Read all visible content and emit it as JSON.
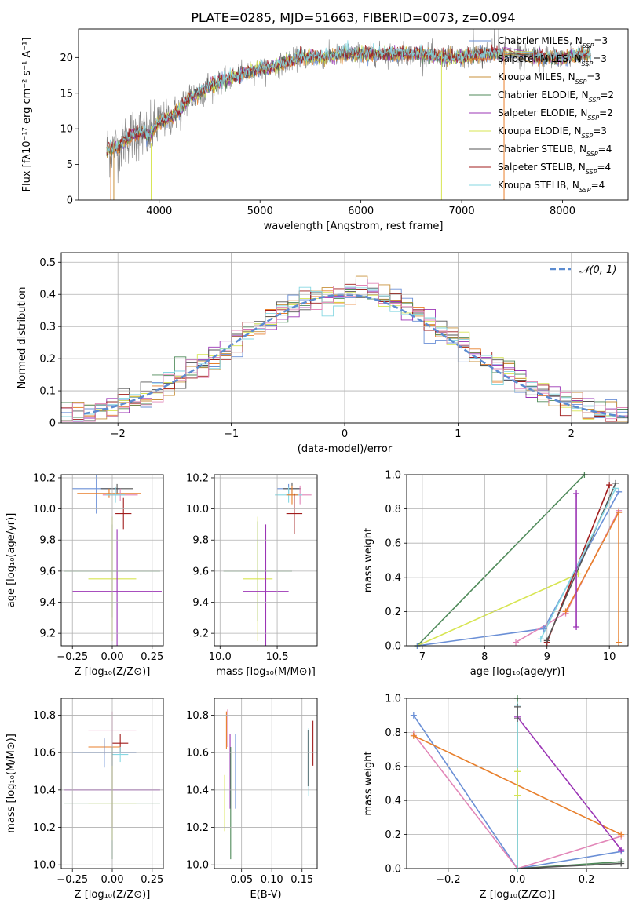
{
  "colors": {
    "Chabrier MILES": "#6a8fd6",
    "Salpeter MILES": "#e87f2b",
    "Kroupa MILES": "#c8913b",
    "Chabrier ELODIE": "#4f8a5a",
    "Salpeter ELODIE": "#9b34b5",
    "Kroupa ELODIE": "#d7e552",
    "Chabrier STELIB": "#555555",
    "Salpeter STELIB": "#a11d1d",
    "Kroupa STELIB": "#86d7e2",
    "pink": "#e286b8",
    "gray_spectrum": "#808080",
    "normal": "#5b8bd0"
  },
  "chart_data": [
    {
      "id": "spectrum",
      "type": "line",
      "title": "PLATE=0285, MJD=51663, FIBERID=0073, z=0.094",
      "xlabel": "wavelength [Angstrom, rest frame]",
      "ylabel": "Flux [fλ10⁻¹⁷ erg cm⁻² s⁻¹ A⁻¹]",
      "xlim": [
        3200,
        8650
      ],
      "ylim": [
        0,
        24
      ],
      "xticks": [
        4000,
        5000,
        6000,
        7000,
        8000
      ],
      "yticks": [
        0,
        5,
        10,
        15,
        20
      ],
      "grid": false,
      "legend": "top-right",
      "legend_entries": [
        {
          "label": "Chabrier MILES, N",
          "sub": "SSP",
          "suffix": "=3",
          "color": "Chabrier MILES"
        },
        {
          "label": "Salpeter MILES, N",
          "sub": "SSP",
          "suffix": "=3",
          "color": "Salpeter MILES"
        },
        {
          "label": "Kroupa MILES, N",
          "sub": "SSP",
          "suffix": "=3",
          "color": "Kroupa MILES"
        },
        {
          "label": "Chabrier ELODIE, N",
          "sub": "SSP",
          "suffix": "=2",
          "color": "Chabrier ELODIE"
        },
        {
          "label": "Salpeter ELODIE, N",
          "sub": "SSP",
          "suffix": "=2",
          "color": "Salpeter ELODIE"
        },
        {
          "label": "Kroupa ELODIE, N",
          "sub": "SSP",
          "suffix": "=3",
          "color": "Kroupa ELODIE"
        },
        {
          "label": "Chabrier STELIB, N",
          "sub": "SSP",
          "suffix": "=4",
          "color": "Chabrier STELIB"
        },
        {
          "label": "Salpeter STELIB, N",
          "sub": "SSP",
          "suffix": "=4",
          "color": "Salpeter STELIB"
        },
        {
          "label": "Kroupa STELIB, N",
          "sub": "SSP",
          "suffix": "=4",
          "color": "Kroupa STELIB"
        }
      ],
      "envelope": {
        "x": [
          3480,
          3600,
          3700,
          3800,
          3900,
          4000,
          4100,
          4200,
          4300,
          4400,
          4500,
          4600,
          4700,
          4800,
          4900,
          5000,
          5100,
          5200,
          5300,
          5400,
          5500,
          5600,
          5700,
          5800,
          5900,
          6000,
          6200,
          6400,
          6600,
          6800,
          7000,
          7200,
          7400,
          7600,
          7800,
          8000,
          8200,
          8280
        ],
        "y": [
          7.0,
          7.5,
          9.0,
          9.5,
          9.0,
          11.0,
          11.5,
          12.5,
          14.5,
          15.0,
          16.0,
          16.5,
          17.0,
          17.5,
          18.0,
          18.5,
          18.5,
          19.0,
          19.5,
          20.0,
          20.0,
          20.0,
          20.0,
          20.5,
          20.5,
          20.5,
          20.5,
          20.5,
          20.5,
          20.0,
          20.0,
          20.5,
          20.5,
          20.5,
          20.0,
          20.0,
          20.5,
          20.3
        ]
      }
    },
    {
      "id": "residuals",
      "type": "line",
      "xlabel": "(data-model)/error",
      "ylabel": "Normed distribution",
      "xlim": [
        -2.5,
        2.5
      ],
      "ylim": [
        0,
        0.53
      ],
      "xticks": [
        -2,
        -1,
        0,
        1,
        2
      ],
      "yticks": [
        0.0,
        0.1,
        0.2,
        0.3,
        0.4,
        0.5
      ],
      "grid": true,
      "legend": "top-right",
      "legend_entries": [
        {
          "label": "𝒩(0, 1)",
          "color": "normal"
        }
      ],
      "bin_width": 0.1
    },
    {
      "id": "age_vs_Z",
      "type": "scatter",
      "xlabel": "Z [log₁₀(Z/Z⊙)]",
      "ylabel": "age  [log₁₀(age/yr)]",
      "xlim": [
        -0.32,
        0.32
      ],
      "ylim": [
        9.12,
        10.22
      ],
      "xticks": [
        -0.25,
        0.0,
        0.25
      ],
      "yticks": [
        9.2,
        9.4,
        9.6,
        9.8,
        10.0,
        10.2
      ],
      "grid": true,
      "points": [
        {
          "x": -0.1,
          "y": 10.13,
          "xerr": 0.15,
          "yerr": 0.16,
          "color": "Chabrier MILES"
        },
        {
          "x": 0.03,
          "y": 10.13,
          "xerr": 0.1,
          "yerr": 0.03,
          "color": "Chabrier STELIB"
        },
        {
          "x": -0.02,
          "y": 10.1,
          "xerr": 0.2,
          "yerr": 0.03,
          "color": "Salpeter MILES"
        },
        {
          "x": 0.05,
          "y": 10.09,
          "xerr": 0.11,
          "yerr": 0.04,
          "color": "pink"
        },
        {
          "x": 0.02,
          "y": 10.09,
          "xerr": 0.06,
          "yerr": 0.05,
          "color": "Kroupa STELIB"
        },
        {
          "x": 0.07,
          "y": 9.97,
          "xerr": 0.05,
          "yerr": 0.1,
          "color": "Salpeter STELIB"
        },
        {
          "x": 0.0,
          "y": 9.6,
          "xerr": 0.3,
          "yerr": 0.3,
          "color": "Chabrier ELODIE"
        },
        {
          "x": 0.0,
          "y": 9.55,
          "xerr": 0.15,
          "yerr": 0.4,
          "color": "Kroupa ELODIE"
        },
        {
          "x": 0.03,
          "y": 9.47,
          "xerr": 0.28,
          "yerr": 0.4,
          "color": "Salpeter ELODIE"
        }
      ]
    },
    {
      "id": "age_vs_mass",
      "type": "scatter",
      "xlabel": "mass [log₁₀(M/M⊙)]",
      "ylabel": "",
      "xlim": [
        9.95,
        10.85
      ],
      "ylim": [
        9.12,
        10.22
      ],
      "xticks": [
        10.0,
        10.5
      ],
      "yticks": [
        9.2,
        9.4,
        9.6,
        9.8,
        10.0,
        10.2
      ],
      "grid": true,
      "points": [
        {
          "x": 10.6,
          "y": 10.13,
          "xerr": 0.1,
          "yerr": 0.03,
          "color": "Chabrier MILES"
        },
        {
          "x": 10.63,
          "y": 10.13,
          "xerr": 0.08,
          "yerr": 0.04,
          "color": "Chabrier STELIB"
        },
        {
          "x": 10.7,
          "y": 10.09,
          "xerr": 0.1,
          "yerr": 0.06,
          "color": "pink"
        },
        {
          "x": 10.6,
          "y": 10.09,
          "xerr": 0.12,
          "yerr": 0.05,
          "color": "Kroupa STELIB"
        },
        {
          "x": 10.63,
          "y": 10.09,
          "xerr": 0.05,
          "yerr": 0.06,
          "color": "Salpeter MILES"
        },
        {
          "x": 10.65,
          "y": 9.97,
          "xerr": 0.07,
          "yerr": 0.13,
          "color": "Salpeter STELIB"
        },
        {
          "x": 10.33,
          "y": 9.6,
          "xerr": 0.3,
          "yerr": 0.32,
          "color": "Chabrier ELODIE"
        },
        {
          "x": 10.33,
          "y": 9.55,
          "xerr": 0.13,
          "yerr": 0.4,
          "color": "Kroupa ELODIE"
        },
        {
          "x": 10.4,
          "y": 9.47,
          "xerr": 0.2,
          "yerr": 0.43,
          "color": "Salpeter ELODIE"
        }
      ]
    },
    {
      "id": "weight_vs_age",
      "type": "line",
      "xlabel": "age  [log₁₀(age/yr)]",
      "ylabel": "mass weight",
      "xlim": [
        6.75,
        10.3
      ],
      "ylim": [
        0,
        1
      ],
      "xticks": [
        7,
        8,
        9,
        10
      ],
      "yticks": [
        0.0,
        0.2,
        0.4,
        0.6,
        0.8,
        1.0
      ],
      "grid": true,
      "series": [
        {
          "color": "Chabrier ELODIE",
          "x": [
            6.92,
            9.6
          ],
          "y": [
            0.0,
            1.0
          ]
        },
        {
          "color": "Kroupa ELODIE",
          "x": [
            6.92,
            9.5
          ],
          "y": [
            0.0,
            0.42
          ]
        },
        {
          "color": "Chabrier MILES",
          "x": [
            6.92,
            8.95,
            10.15
          ],
          "y": [
            0.0,
            0.1,
            0.9
          ]
        },
        {
          "color": "pink",
          "x": [
            8.5,
            9.3,
            10.15
          ],
          "y": [
            0.02,
            0.19,
            0.79
          ]
        },
        {
          "color": "Salpeter MILES",
          "x": [
            9.3,
            10.15
          ],
          "y": [
            0.2,
            0.78
          ]
        },
        {
          "color": "Salpeter STELIB",
          "x": [
            9.0,
            10.0
          ],
          "y": [
            0.02,
            0.94
          ]
        },
        {
          "color": "Chabrier STELIB",
          "x": [
            9.0,
            10.1
          ],
          "y": [
            0.03,
            0.95
          ]
        },
        {
          "color": "Kroupa STELIB",
          "x": [
            8.9,
            10.1
          ],
          "y": [
            0.04,
            0.92
          ]
        }
      ],
      "vlines": [
        {
          "color": "Salpeter ELODIE",
          "x": 9.47,
          "y": [
            0.11,
            0.89
          ]
        },
        {
          "color": "Salpeter MILES",
          "x": 10.15,
          "y": [
            0.02,
            0.78
          ]
        }
      ]
    },
    {
      "id": "mass_vs_Z",
      "type": "scatter",
      "xlabel": "Z [log₁₀(Z/Z⊙)]",
      "ylabel": "mass [log₁₀(M/M⊙)]",
      "xlim": [
        -0.32,
        0.32
      ],
      "ylim": [
        9.98,
        10.89
      ],
      "xticks": [
        -0.25,
        0.0,
        0.25
      ],
      "yticks": [
        10.0,
        10.2,
        10.4,
        10.6,
        10.8
      ],
      "grid": true,
      "points": [
        {
          "x": 0.0,
          "y": 10.72,
          "xerr": 0.15,
          "yerr": 0.1,
          "color": "pink"
        },
        {
          "x": 0.05,
          "y": 10.65,
          "xerr": 0.05,
          "yerr": 0.05,
          "color": "Salpeter STELIB"
        },
        {
          "x": -0.05,
          "y": 10.63,
          "xerr": 0.1,
          "yerr": 0.04,
          "color": "Salpeter MILES"
        },
        {
          "x": -0.05,
          "y": 10.6,
          "xerr": 0.2,
          "yerr": 0.08,
          "color": "Chabrier MILES"
        },
        {
          "x": 0.05,
          "y": 10.59,
          "xerr": 0.05,
          "yerr": 0.04,
          "color": "Kroupa STELIB"
        },
        {
          "x": 0.0,
          "y": 10.4,
          "xerr": 0.3,
          "yerr": 0.2,
          "color": "Salpeter ELODIE"
        },
        {
          "x": 0.0,
          "y": 10.33,
          "xerr": 0.3,
          "yerr": 0.3,
          "color": "Chabrier ELODIE"
        },
        {
          "x": 0.0,
          "y": 10.33,
          "xerr": 0.15,
          "yerr": 0.2,
          "color": "Kroupa ELODIE"
        }
      ]
    },
    {
      "id": "mass_vs_ebv",
      "type": "scatter",
      "xlabel": "E(B-V)",
      "ylabel": "",
      "xlim": [
        0.005,
        0.175
      ],
      "ylim": [
        9.98,
        10.89
      ],
      "xticks": [
        0.05,
        0.1,
        0.15
      ],
      "yticks": [
        10.0,
        10.2,
        10.4,
        10.6,
        10.8
      ],
      "grid": true,
      "points": [
        {
          "x": 0.025,
          "y": 10.72,
          "yerr": 0.1,
          "color": "Salpeter MILES"
        },
        {
          "x": 0.027,
          "y": 10.73,
          "yerr": 0.1,
          "color": "pink"
        },
        {
          "x": 0.031,
          "y": 10.5,
          "yerr": 0.2,
          "color": "Salpeter ELODIE"
        },
        {
          "x": 0.032,
          "y": 10.33,
          "yerr": 0.3,
          "color": "Chabrier ELODIE"
        },
        {
          "x": 0.022,
          "y": 10.33,
          "yerr": 0.15,
          "color": "Kroupa ELODIE"
        },
        {
          "x": 0.04,
          "y": 10.5,
          "yerr": 0.2,
          "color": "Chabrier MILES"
        },
        {
          "x": 0.16,
          "y": 10.57,
          "yerr": 0.15,
          "color": "Chabrier STELIB"
        },
        {
          "x": 0.161,
          "y": 10.55,
          "yerr": 0.18,
          "color": "Kroupa STELIB"
        },
        {
          "x": 0.168,
          "y": 10.65,
          "yerr": 0.12,
          "color": "Salpeter STELIB"
        }
      ]
    },
    {
      "id": "weight_vs_Z",
      "type": "line",
      "xlabel": "Z [log₁₀(Z/Z⊙)]",
      "ylabel": "mass weight",
      "xlim": [
        -0.32,
        0.32
      ],
      "ylim": [
        0,
        1
      ],
      "xticks": [
        -0.2,
        0.0,
        0.2
      ],
      "yticks": [
        0.0,
        0.2,
        0.4,
        0.6,
        0.8,
        1.0
      ],
      "grid": true,
      "series": [
        {
          "color": "Chabrier MILES",
          "x": [
            -0.3,
            0.0,
            0.3
          ],
          "y": [
            0.9,
            0.0,
            0.1
          ]
        },
        {
          "color": "pink",
          "x": [
            -0.3,
            0.0,
            0.3
          ],
          "y": [
            0.79,
            0.0,
            0.19
          ]
        },
        {
          "color": "Salpeter MILES",
          "x": [
            -0.3,
            0.3
          ],
          "y": [
            0.78,
            0.2
          ]
        },
        {
          "color": "Salpeter ELODIE",
          "x": [
            0.0,
            0.3
          ],
          "y": [
            0.89,
            0.11
          ]
        },
        {
          "color": "Chabrier ELODIE",
          "x": [
            0.0,
            0.3
          ],
          "y": [
            0.0,
            0.04
          ]
        },
        {
          "color": "Chabrier STELIB",
          "x": [
            0.0,
            0.3
          ],
          "y": [
            0.0,
            0.03
          ]
        }
      ],
      "vlines": [
        {
          "color": "Chabrier ELODIE",
          "x": 0.0,
          "y": [
            0.0,
            1.0
          ]
        },
        {
          "color": "Kroupa STELIB",
          "x": 0.0,
          "y": [
            0.0,
            0.96
          ]
        },
        {
          "color": "Kroupa ELODIE",
          "x": 0.0,
          "y": [
            0.43,
            0.57
          ]
        },
        {
          "color": "Chabrier STELIB",
          "x": 0.0,
          "y": [
            0.88,
            0.95
          ]
        }
      ]
    }
  ]
}
